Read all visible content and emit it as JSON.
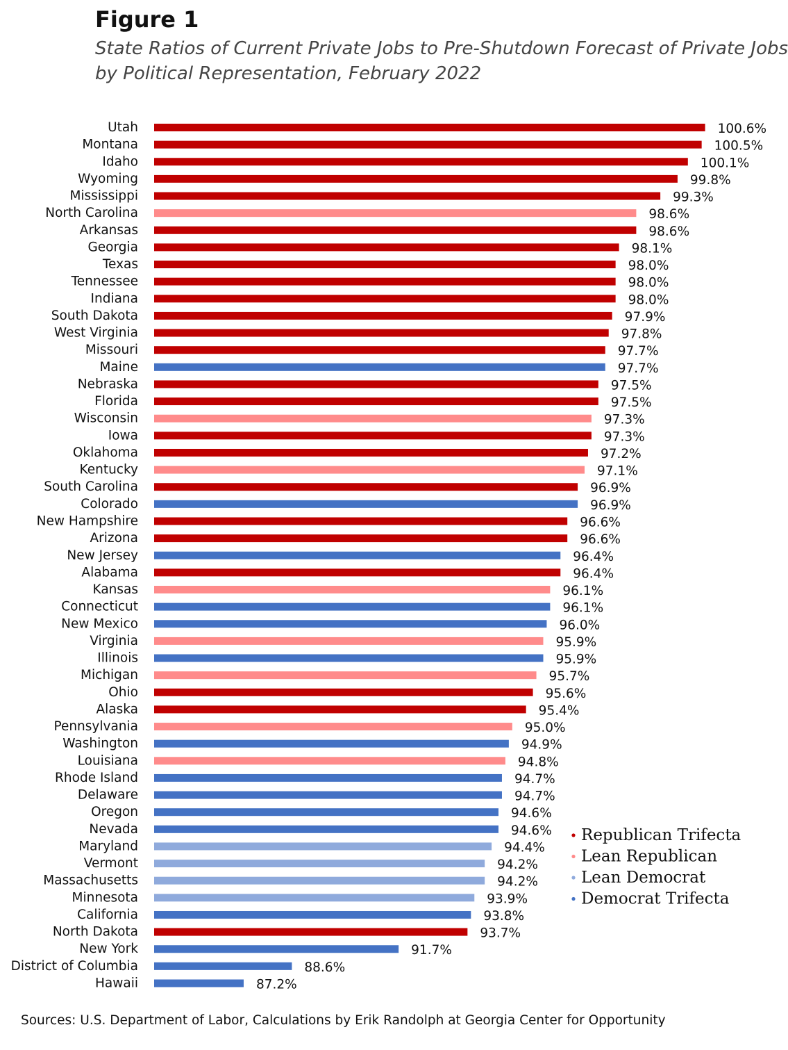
{
  "figure_label": "Figure 1",
  "title_line1": "State Ratios of Current Private Jobs to Pre-Shutdown Forecast of Private Jobs",
  "title_line2": "by Political Representation, February 2022",
  "source": "Sources: U.S. Department of Labor, Calculations by Erik Randolph at Georgia Center for Opportunity",
  "colors": {
    "rep": "#c00000",
    "lean_rep": "#ff8b8b",
    "lean_dem": "#8faadc",
    "dem": "#4472c4"
  },
  "chart_data": {
    "type": "bar",
    "orientation": "horizontal",
    "title": "State Ratios of Current Private Jobs to Pre-Shutdown Forecast of Private Jobs by Political Representation, February 2022",
    "xlabel": "",
    "ylabel": "",
    "unit": "%",
    "xlim": [
      85,
      101
    ],
    "grid": false,
    "legend_position": "bottom-right",
    "legend": [
      {
        "key": "rep",
        "label": "Republican Trifecta"
      },
      {
        "key": "lean_rep",
        "label": "Lean Republican"
      },
      {
        "key": "lean_dem",
        "label": "Lean Democrat"
      },
      {
        "key": "dem",
        "label": "Democrat Trifecta"
      }
    ],
    "bars": [
      {
        "state": "Utah",
        "value": 100.6,
        "label": "100.6%",
        "group": "rep"
      },
      {
        "state": "Montana",
        "value": 100.5,
        "label": "100.5%",
        "group": "rep"
      },
      {
        "state": "Idaho",
        "value": 100.1,
        "label": "100.1%",
        "group": "rep"
      },
      {
        "state": "Wyoming",
        "value": 99.8,
        "label": "99.8%",
        "group": "rep"
      },
      {
        "state": "Mississippi",
        "value": 99.3,
        "label": "99.3%",
        "group": "rep"
      },
      {
        "state": "North Carolina",
        "value": 98.6,
        "label": "98.6%",
        "group": "lean_rep"
      },
      {
        "state": "Arkansas",
        "value": 98.6,
        "label": "98.6%",
        "group": "rep"
      },
      {
        "state": "Georgia",
        "value": 98.1,
        "label": "98.1%",
        "group": "rep"
      },
      {
        "state": "Texas",
        "value": 98.0,
        "label": "98.0%",
        "group": "rep"
      },
      {
        "state": "Tennessee",
        "value": 98.0,
        "label": "98.0%",
        "group": "rep"
      },
      {
        "state": "Indiana",
        "value": 98.0,
        "label": "98.0%",
        "group": "rep"
      },
      {
        "state": "South Dakota",
        "value": 97.9,
        "label": "97.9%",
        "group": "rep"
      },
      {
        "state": "West Virginia",
        "value": 97.8,
        "label": "97.8%",
        "group": "rep"
      },
      {
        "state": "Missouri",
        "value": 97.7,
        "label": "97.7%",
        "group": "rep"
      },
      {
        "state": "Maine",
        "value": 97.7,
        "label": "97.7%",
        "group": "dem"
      },
      {
        "state": "Nebraska",
        "value": 97.5,
        "label": "97.5%",
        "group": "rep"
      },
      {
        "state": "Florida",
        "value": 97.5,
        "label": "97.5%",
        "group": "rep"
      },
      {
        "state": "Wisconsin",
        "value": 97.3,
        "label": "97.3%",
        "group": "lean_rep"
      },
      {
        "state": "Iowa",
        "value": 97.3,
        "label": "97.3%",
        "group": "rep"
      },
      {
        "state": "Oklahoma",
        "value": 97.2,
        "label": "97.2%",
        "group": "rep"
      },
      {
        "state": "Kentucky",
        "value": 97.1,
        "label": "97.1%",
        "group": "lean_rep"
      },
      {
        "state": "South Carolina",
        "value": 96.9,
        "label": "96.9%",
        "group": "rep"
      },
      {
        "state": "Colorado",
        "value": 96.9,
        "label": "96.9%",
        "group": "dem"
      },
      {
        "state": "New Hampshire",
        "value": 96.6,
        "label": "96.6%",
        "group": "rep"
      },
      {
        "state": "Arizona",
        "value": 96.6,
        "label": "96.6%",
        "group": "rep"
      },
      {
        "state": "New Jersey",
        "value": 96.4,
        "label": "96.4%",
        "group": "dem"
      },
      {
        "state": "Alabama",
        "value": 96.4,
        "label": "96.4%",
        "group": "rep"
      },
      {
        "state": "Kansas",
        "value": 96.1,
        "label": "96.1%",
        "group": "lean_rep"
      },
      {
        "state": "Connecticut",
        "value": 96.1,
        "label": "96.1%",
        "group": "dem"
      },
      {
        "state": "New Mexico",
        "value": 96.0,
        "label": "96.0%",
        "group": "dem"
      },
      {
        "state": "Virginia",
        "value": 95.9,
        "label": "95.9%",
        "group": "lean_rep"
      },
      {
        "state": "Illinois",
        "value": 95.9,
        "label": "95.9%",
        "group": "dem"
      },
      {
        "state": "Michigan",
        "value": 95.7,
        "label": "95.7%",
        "group": "lean_rep"
      },
      {
        "state": "Ohio",
        "value": 95.6,
        "label": "95.6%",
        "group": "rep"
      },
      {
        "state": "Alaska",
        "value": 95.4,
        "label": "95.4%",
        "group": "rep"
      },
      {
        "state": "Pennsylvania",
        "value": 95.0,
        "label": "95.0%",
        "group": "lean_rep"
      },
      {
        "state": "Washington",
        "value": 94.9,
        "label": "94.9%",
        "group": "dem"
      },
      {
        "state": "Louisiana",
        "value": 94.8,
        "label": "94.8%",
        "group": "lean_rep"
      },
      {
        "state": "Rhode Island",
        "value": 94.7,
        "label": "94.7%",
        "group": "dem"
      },
      {
        "state": "Delaware",
        "value": 94.7,
        "label": "94.7%",
        "group": "dem"
      },
      {
        "state": "Oregon",
        "value": 94.6,
        "label": "94.6%",
        "group": "dem"
      },
      {
        "state": "Nevada",
        "value": 94.6,
        "label": "94.6%",
        "group": "dem"
      },
      {
        "state": "Maryland",
        "value": 94.4,
        "label": "94.4%",
        "group": "lean_dem"
      },
      {
        "state": "Vermont",
        "value": 94.2,
        "label": "94.2%",
        "group": "lean_dem"
      },
      {
        "state": "Massachusetts",
        "value": 94.2,
        "label": "94.2%",
        "group": "lean_dem"
      },
      {
        "state": "Minnesota",
        "value": 93.9,
        "label": "93.9%",
        "group": "lean_dem"
      },
      {
        "state": "California",
        "value": 93.8,
        "label": "93.8%",
        "group": "dem"
      },
      {
        "state": "North Dakota",
        "value": 93.7,
        "label": "93.7%",
        "group": "rep"
      },
      {
        "state": "New York",
        "value": 91.7,
        "label": "91.7%",
        "group": "dem"
      },
      {
        "state": "District of Columbia",
        "value": 88.6,
        "label": "88.6%",
        "group": "dem"
      },
      {
        "state": "Hawaii",
        "value": 87.2,
        "label": "87.2%",
        "group": "dem"
      }
    ]
  }
}
